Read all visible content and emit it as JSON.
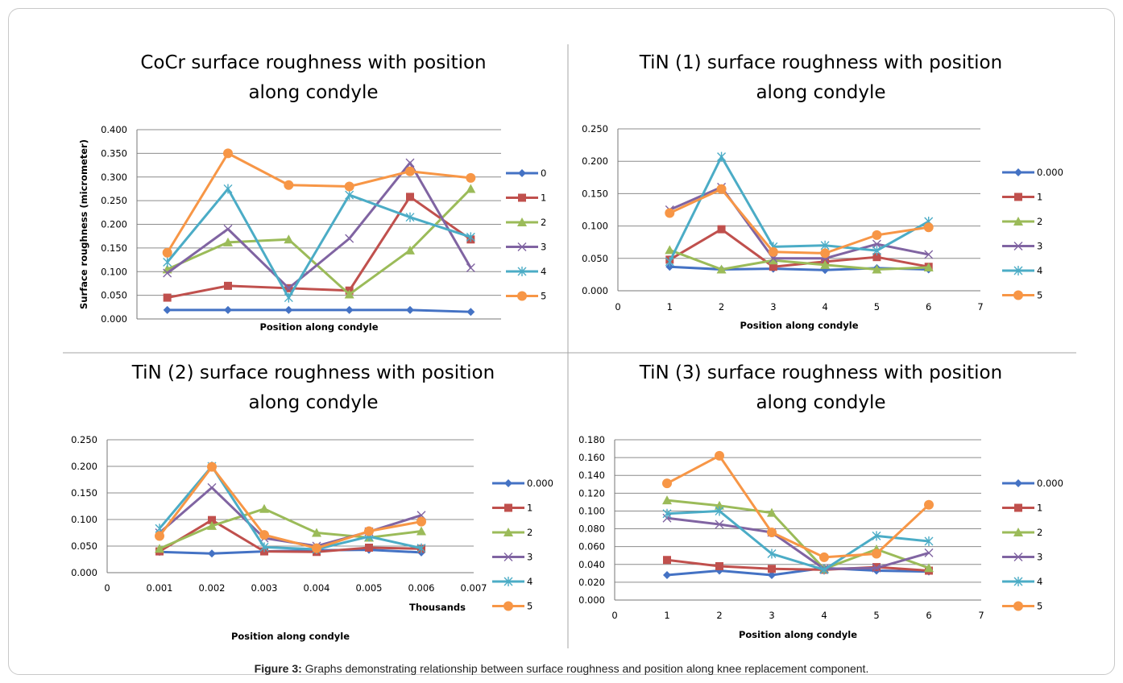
{
  "caption": {
    "label": "Figure 3:",
    "text": " Graphs demonstrating relationship between surface roughness and position along knee replacement component."
  },
  "colors": {
    "s0": "#4472c4",
    "s1": "#c0504d",
    "s2": "#9bbb59",
    "s3": "#8064a2",
    "s4": "#4bacc6",
    "s5": "#f79646",
    "grid": "#8c8c8c",
    "divider": "#a6a6a6"
  },
  "chart_data": [
    {
      "type": "line",
      "title_lines": [
        "CoCr surface roughness with position",
        "along condyle"
      ],
      "xlabel": "Position along condyle",
      "ylabel": "Surface roughness (micrometer)",
      "x_axis_kind": "category",
      "x_tick_labels": [],
      "x_multiplier_label": "",
      "ylim": [
        0,
        0.4
      ],
      "y_ticks": [
        "0.000",
        "0.050",
        "0.100",
        "0.150",
        "0.200",
        "0.250",
        "0.300",
        "0.350",
        "0.400"
      ],
      "grid": true,
      "legend_position": "right",
      "x": [
        1,
        2,
        3,
        4,
        5,
        6
      ],
      "series": [
        {
          "name": "0",
          "values": [
            0.019,
            0.019,
            0.019,
            0.019,
            0.019,
            0.015
          ]
        },
        {
          "name": "1",
          "values": [
            0.045,
            0.07,
            0.065,
            0.06,
            0.258,
            0.168
          ]
        },
        {
          "name": "2",
          "values": [
            0.105,
            0.162,
            0.168,
            0.052,
            0.145,
            0.275
          ]
        },
        {
          "name": "3",
          "values": [
            0.097,
            0.19,
            0.065,
            0.17,
            0.33,
            0.108
          ]
        },
        {
          "name": "4",
          "values": [
            0.12,
            0.275,
            0.045,
            0.262,
            0.215,
            0.173
          ]
        },
        {
          "name": "5",
          "values": [
            0.14,
            0.35,
            0.283,
            0.28,
            0.312,
            0.298
          ]
        }
      ]
    },
    {
      "type": "line",
      "title_lines": [
        "TiN (1) surface roughness with position",
        "along condyle"
      ],
      "xlabel": "Position along condyle",
      "ylabel": "",
      "x_axis_kind": "value",
      "xlim": [
        0,
        7
      ],
      "x_tick_labels": [
        "0",
        "1",
        "2",
        "3",
        "4",
        "5",
        "6",
        "7"
      ],
      "x_multiplier_label": "",
      "ylim": [
        0,
        0.25
      ],
      "y_ticks": [
        "0.000",
        "0.050",
        "0.100",
        "0.150",
        "0.200",
        "0.250"
      ],
      "grid": true,
      "legend_position": "right",
      "x": [
        1,
        2,
        3,
        4,
        5,
        6
      ],
      "series": [
        {
          "name": "0.000",
          "values": [
            0.037,
            0.033,
            0.034,
            0.032,
            0.035,
            0.033
          ]
        },
        {
          "name": "1",
          "values": [
            0.048,
            0.095,
            0.037,
            0.045,
            0.052,
            0.037
          ]
        },
        {
          "name": "2",
          "values": [
            0.063,
            0.033,
            0.047,
            0.04,
            0.033,
            0.036
          ]
        },
        {
          "name": "3",
          "values": [
            0.125,
            0.16,
            0.05,
            0.05,
            0.072,
            0.056
          ]
        },
        {
          "name": "4",
          "values": [
            0.045,
            0.207,
            0.068,
            0.07,
            0.062,
            0.107
          ]
        },
        {
          "name": "5",
          "values": [
            0.12,
            0.157,
            0.06,
            0.058,
            0.086,
            0.098
          ]
        }
      ]
    },
    {
      "type": "line",
      "title_lines": [
        "TiN (2) surface roughness with position",
        "along condyle"
      ],
      "xlabel": "Position along condyle",
      "ylabel": "",
      "x_axis_kind": "value",
      "xlim": [
        0,
        0.007
      ],
      "x_tick_labels": [
        "0",
        "0.001",
        "0.002",
        "0.003",
        "0.004",
        "0.005",
        "0.006",
        "0.007"
      ],
      "x_multiplier_label": "Thousands",
      "ylim": [
        0,
        0.25
      ],
      "y_ticks": [
        "0.000",
        "0.050",
        "0.100",
        "0.150",
        "0.200",
        "0.250"
      ],
      "grid": true,
      "legend_position": "right",
      "x": [
        0.001,
        0.002,
        0.003,
        0.004,
        0.005,
        0.006
      ],
      "series": [
        {
          "name": "0.000",
          "values": [
            0.039,
            0.036,
            0.04,
            0.042,
            0.043,
            0.038
          ]
        },
        {
          "name": "1",
          "values": [
            0.04,
            0.099,
            0.04,
            0.039,
            0.047,
            0.045
          ]
        },
        {
          "name": "2",
          "values": [
            0.045,
            0.088,
            0.12,
            0.075,
            0.066,
            0.078
          ]
        },
        {
          "name": "3",
          "values": [
            0.075,
            0.16,
            0.065,
            0.05,
            0.077,
            0.108
          ]
        },
        {
          "name": "4",
          "values": [
            0.083,
            0.2,
            0.048,
            0.044,
            0.068,
            0.046
          ]
        },
        {
          "name": "5",
          "values": [
            0.069,
            0.199,
            0.071,
            0.046,
            0.078,
            0.096
          ]
        }
      ]
    },
    {
      "type": "line",
      "title_lines": [
        "TiN (3) surface roughness with position",
        "along condyle"
      ],
      "xlabel": "Position along condyle",
      "ylabel": "",
      "x_axis_kind": "value",
      "xlim": [
        0,
        7
      ],
      "x_tick_labels": [
        "0",
        "1",
        "2",
        "3",
        "4",
        "5",
        "6",
        "7"
      ],
      "x_multiplier_label": "",
      "ylim": [
        0,
        0.18
      ],
      "y_ticks": [
        "0.000",
        "0.020",
        "0.040",
        "0.060",
        "0.080",
        "0.100",
        "0.120",
        "0.140",
        "0.160",
        "0.180"
      ],
      "grid": true,
      "legend_position": "right",
      "x": [
        1,
        2,
        3,
        4,
        5,
        6
      ],
      "series": [
        {
          "name": "0.000",
          "values": [
            0.028,
            0.033,
            0.028,
            0.036,
            0.033,
            0.032
          ]
        },
        {
          "name": "1",
          "values": [
            0.045,
            0.038,
            0.035,
            0.034,
            0.037,
            0.033
          ]
        },
        {
          "name": "2",
          "values": [
            0.112,
            0.106,
            0.098,
            0.035,
            0.057,
            0.036
          ]
        },
        {
          "name": "3",
          "values": [
            0.092,
            0.085,
            0.076,
            0.035,
            0.036,
            0.053
          ]
        },
        {
          "name": "4",
          "values": [
            0.097,
            0.1,
            0.052,
            0.034,
            0.072,
            0.066
          ]
        },
        {
          "name": "5",
          "values": [
            0.131,
            0.162,
            0.076,
            0.048,
            0.052,
            0.107
          ]
        }
      ]
    }
  ]
}
